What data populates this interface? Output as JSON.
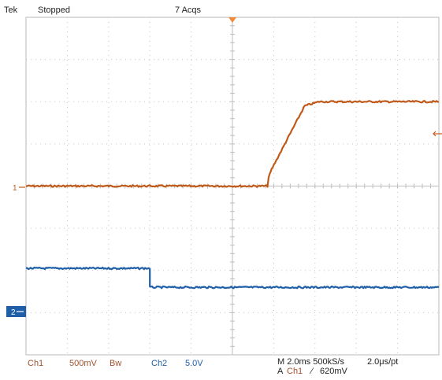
{
  "header": {
    "brand": "Tek",
    "status": "Stopped",
    "acquisitions": "7 Acqs"
  },
  "channels": {
    "ch1": {
      "marker": "1",
      "label": "Ch1",
      "scale": "500mV",
      "bw": "Bw",
      "color": "#c05a1a"
    },
    "ch2": {
      "marker": "2",
      "label": "Ch2",
      "scale": "5.0V",
      "color": "#1f5fa8"
    }
  },
  "footer": {
    "timebase": "M 2.0ms 500kS/s",
    "sample_interval": "2.0μs/pt",
    "trigger_source": "A",
    "trigger_channel": "Ch1",
    "trigger_slope": "⁄",
    "trigger_level": "620mV"
  },
  "chart_data": {
    "type": "line",
    "xlim": [
      -10,
      10
    ],
    "ylim": [
      -4,
      4
    ],
    "grid": true,
    "x_divisions": 10,
    "y_divisions": 8,
    "series": [
      {
        "name": "Ch1",
        "offset_div": 0.0,
        "x": [
          -10,
          1.7,
          1.75,
          1.9,
          3.5,
          4.2,
          10
        ],
        "y": [
          0.0,
          0.0,
          0.2,
          0.4,
          1.9,
          2.0,
          2.0
        ]
      },
      {
        "name": "Ch2",
        "offset_div": -2.4,
        "x": [
          -10,
          -4.0,
          -4.0,
          10
        ],
        "y": [
          0.45,
          0.45,
          0.0,
          0.0
        ]
      }
    ]
  }
}
